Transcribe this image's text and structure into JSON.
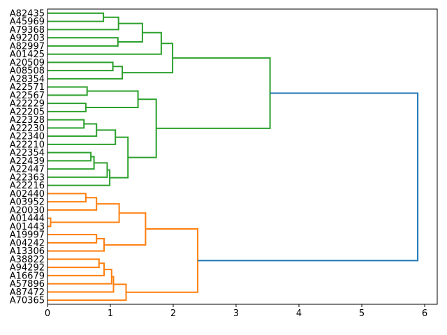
{
  "chart_data": {
    "type": "dendrogram",
    "title": "",
    "xlabel": "",
    "ylabel": "",
    "orientation": "leaves-left-root-right",
    "x_ticks": [
      "0",
      "1",
      "2",
      "3",
      "4",
      "5",
      "6"
    ],
    "xlim": [
      0,
      6.2
    ],
    "grid": false,
    "colors": {
      "g": "#2ca02c",
      "o": "#ff7f0e",
      "b": "#1f77b4",
      "axis": "#000000",
      "background": "#ffffff"
    },
    "leaf_labels": [
      "A82435",
      "A45969",
      "A79368",
      "A92203",
      "A82997",
      "A01425",
      "A20509",
      "A08508",
      "A28354",
      "A22571",
      "A22567",
      "A22229",
      "A22205",
      "A22328",
      "A22230",
      "A22340",
      "A22210",
      "A22354",
      "A22439",
      "A22447",
      "A22363",
      "A22216",
      "A02440",
      "A03952",
      "A20030",
      "A01444",
      "A01443",
      "A19997",
      "A04242",
      "A13306",
      "A38822",
      "A94292",
      "A16679",
      "A57896",
      "A87472",
      "A70365"
    ],
    "root_merge_distance": 5.89,
    "tree": {
      "d": 5.89,
      "c": "b",
      "ch": [
        {
          "d": 3.54,
          "c": "g",
          "ch": [
            {
              "d": 1.99,
              "c": "g",
              "ch": [
                {
                  "d": 1.81,
                  "c": "g",
                  "ch": [
                    {
                      "d": 1.51,
                      "c": "g",
                      "ch": [
                        {
                          "d": 1.13,
                          "c": "g",
                          "ch": [
                            {
                              "d": 0.89,
                              "c": "g",
                              "ch": [
                                {
                                  "l": "A82435"
                                },
                                {
                                  "l": "A45969"
                                }
                              ]
                            },
                            {
                              "l": "A79368"
                            }
                          ]
                        },
                        {
                          "d": 1.12,
                          "c": "g",
                          "ch": [
                            {
                              "l": "A92203"
                            },
                            {
                              "l": "A82997"
                            }
                          ]
                        }
                      ]
                    },
                    {
                      "l": "A01425"
                    }
                  ]
                },
                {
                  "d": 1.19,
                  "c": "g",
                  "ch": [
                    {
                      "d": 1.04,
                      "c": "g",
                      "ch": [
                        {
                          "l": "A20509"
                        },
                        {
                          "l": "A08508"
                        }
                      ]
                    },
                    {
                      "l": "A28354"
                    }
                  ]
                }
              ]
            },
            {
              "d": 1.73,
              "c": "g",
              "ch": [
                {
                  "d": 1.44,
                  "c": "g",
                  "ch": [
                    {
                      "d": 0.63,
                      "c": "g",
                      "ch": [
                        {
                          "l": "A22571"
                        },
                        {
                          "l": "A22567"
                        }
                      ]
                    },
                    {
                      "d": 0.61,
                      "c": "g",
                      "ch": [
                        {
                          "l": "A22229"
                        },
                        {
                          "l": "A22205"
                        }
                      ]
                    }
                  ]
                },
                {
                  "d": 1.28,
                  "c": "g",
                  "ch": [
                    {
                      "d": 1.08,
                      "c": "g",
                      "ch": [
                        {
                          "d": 0.78,
                          "c": "g",
                          "ch": [
                            {
                              "d": 0.58,
                              "c": "g",
                              "ch": [
                                {
                                  "l": "A22328"
                                },
                                {
                                  "l": "A22230"
                                }
                              ]
                            },
                            {
                              "l": "A22340"
                            }
                          ]
                        },
                        {
                          "l": "A22210"
                        }
                      ]
                    },
                    {
                      "d": 0.99,
                      "c": "g",
                      "ch": [
                        {
                          "d": 0.95,
                          "c": "g",
                          "ch": [
                            {
                              "d": 0.74,
                              "c": "g",
                              "ch": [
                                {
                                  "d": 0.69,
                                  "c": "g",
                                  "ch": [
                                    {
                                      "l": "A22354"
                                    },
                                    {
                                      "l": "A22439"
                                    }
                                  ]
                                },
                                {
                                  "l": "A22447"
                                }
                              ]
                            },
                            {
                              "l": "A22363"
                            }
                          ]
                        },
                        {
                          "l": "A22216"
                        }
                      ]
                    }
                  ]
                }
              ]
            }
          ]
        },
        {
          "d": 2.39,
          "c": "o",
          "ch": [
            {
              "d": 1.56,
              "c": "o",
              "ch": [
                {
                  "d": 1.14,
                  "c": "o",
                  "ch": [
                    {
                      "d": 0.78,
                      "c": "o",
                      "ch": [
                        {
                          "d": 0.61,
                          "c": "o",
                          "ch": [
                            {
                              "l": "A02440"
                            },
                            {
                              "l": "A03952"
                            }
                          ]
                        },
                        {
                          "l": "A20030"
                        }
                      ]
                    },
                    {
                      "d": 0.05,
                      "c": "o",
                      "ch": [
                        {
                          "l": "A01444"
                        },
                        {
                          "l": "A01443"
                        }
                      ]
                    }
                  ]
                },
                {
                  "d": 0.9,
                  "c": "o",
                  "ch": [
                    {
                      "d": 0.78,
                      "c": "o",
                      "ch": [
                        {
                          "l": "A19997"
                        },
                        {
                          "l": "A04242"
                        }
                      ]
                    },
                    {
                      "l": "A13306"
                    }
                  ]
                }
              ]
            },
            {
              "d": 1.25,
              "c": "o",
              "ch": [
                {
                  "d": 1.05,
                  "c": "o",
                  "ch": [
                    {
                      "d": 1.02,
                      "c": "o",
                      "ch": [
                        {
                          "d": 0.9,
                          "c": "o",
                          "ch": [
                            {
                              "d": 0.82,
                              "c": "o",
                              "ch": [
                                {
                                  "l": "A38822"
                                },
                                {
                                  "l": "A94292"
                                }
                              ]
                            },
                            {
                              "l": "A16679"
                            }
                          ]
                        },
                        {
                          "l": "A57896"
                        }
                      ]
                    },
                    {
                      "l": "A87472"
                    }
                  ]
                },
                {
                  "l": "A70365"
                }
              ]
            }
          ]
        }
      ]
    }
  }
}
